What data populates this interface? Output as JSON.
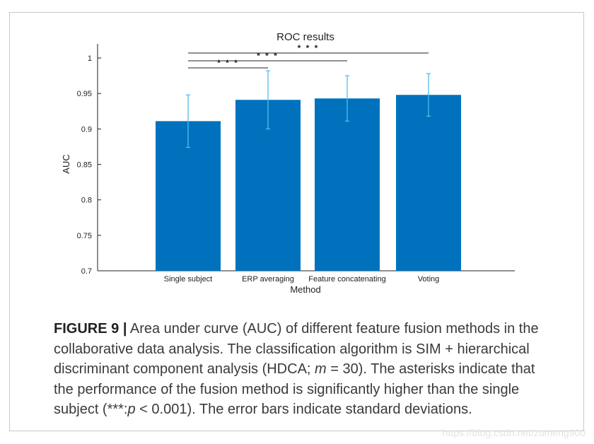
{
  "chart_data": {
    "type": "bar",
    "title": "ROC results",
    "xlabel": "Method",
    "ylabel": "AUC",
    "categories": [
      "Single subject",
      "ERP averaging",
      "Feature concatenating",
      "Voting"
    ],
    "values": [
      0.911,
      0.941,
      0.943,
      0.948
    ],
    "error": [
      0.037,
      0.041,
      0.032,
      0.03
    ],
    "ylim": [
      0.7,
      1.02
    ],
    "yticks": [
      0.7,
      0.75,
      0.8,
      0.85,
      0.9,
      0.95,
      1
    ],
    "ytick_labels": [
      "0.7",
      "0.75",
      "0.8",
      "0.85",
      "0.9",
      "0.95",
      "1"
    ],
    "bar_color": "#0072bd",
    "error_color": "#4dbeee",
    "significance": [
      {
        "from": "Single subject",
        "to": "ERP averaging",
        "label": "* * *"
      },
      {
        "from": "Single subject",
        "to": "Feature concatenating",
        "label": "* * *"
      },
      {
        "from": "Single subject",
        "to": "Voting",
        "label": "* * *"
      }
    ],
    "grid": false
  },
  "caption": {
    "label": "FIGURE 9",
    "separator": "|",
    "text_1": " Area under curve (AUC) of different feature fusion methods in the collaborative data analysis. The classification algorithm is SIM + hierarchical discriminant component analysis (HDCA; ",
    "m_symbol": "m",
    "text_2": " = 30). The asterisks indicate that the performance of the fusion method is significantly higher than the single subject (***:",
    "p_symbol": "p",
    "text_3": " < 0.001). The error bars indicate standard deviations."
  },
  "watermark": "https://blog.csdn.net/zumeng900"
}
